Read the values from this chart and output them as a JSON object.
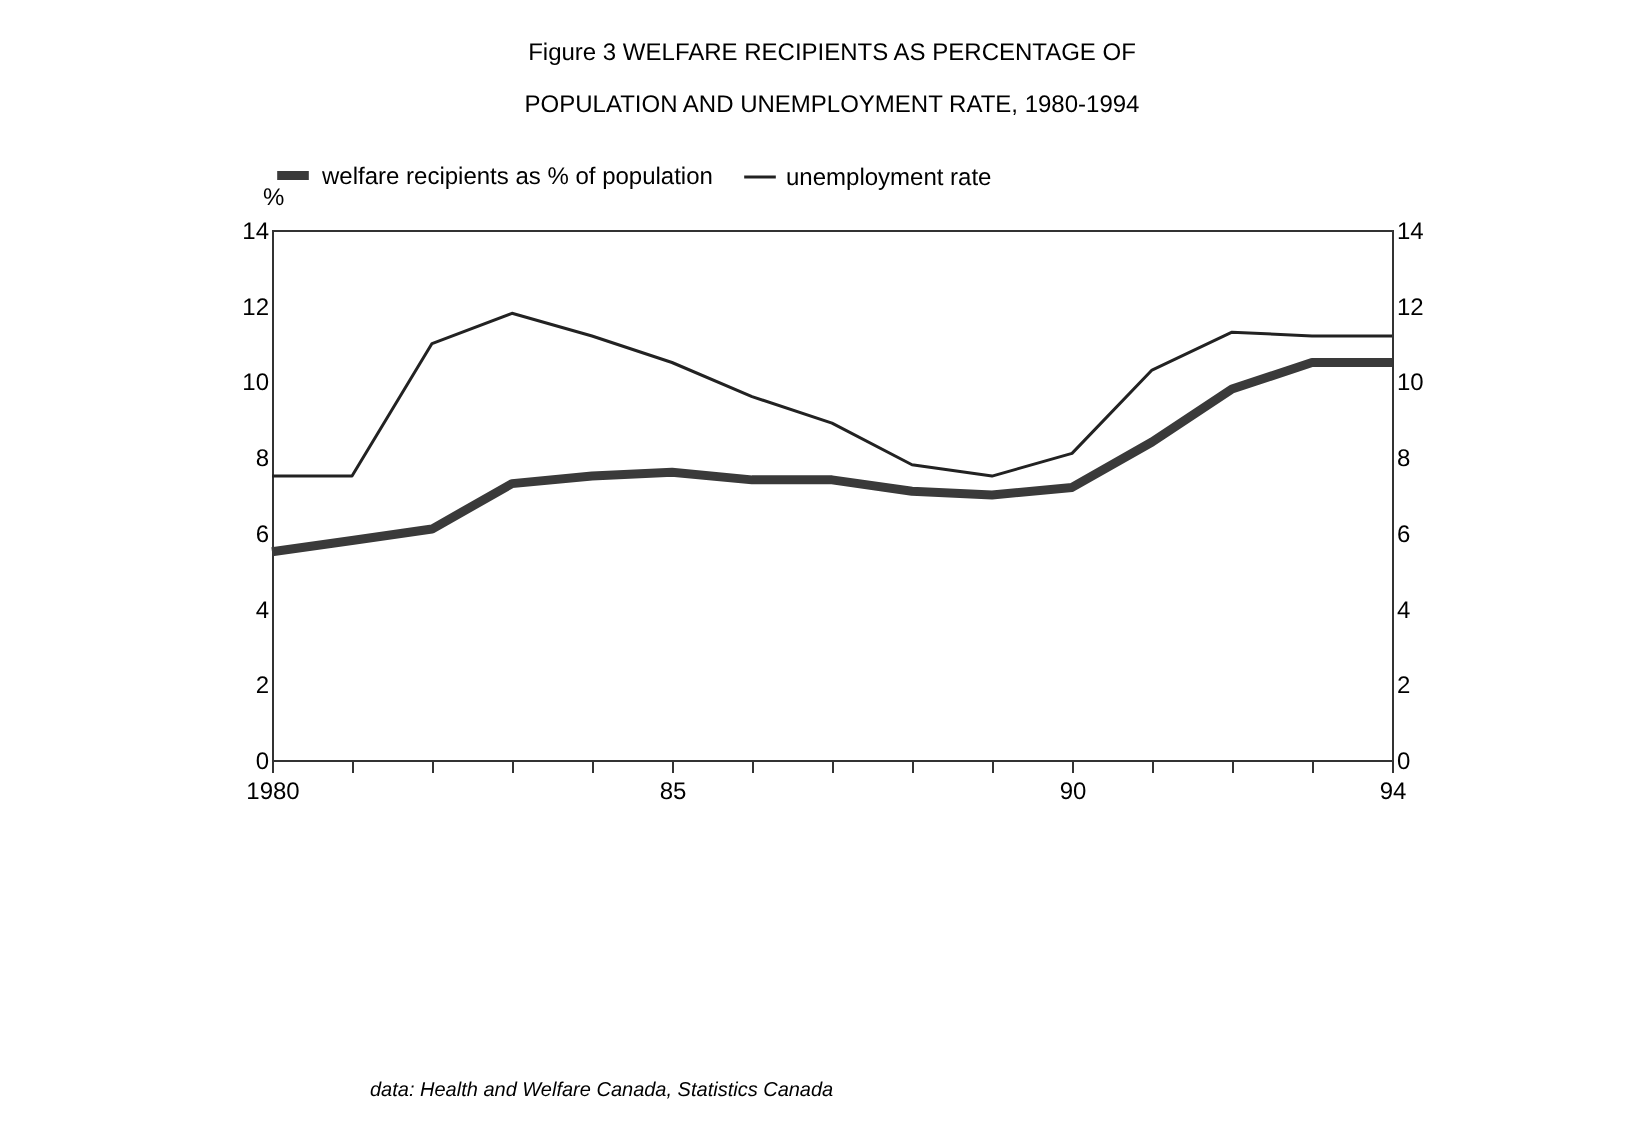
{
  "chart_data": {
    "type": "line",
    "title": "Figure 3   WELFARE RECIPIENTS AS PERCENTAGE OF\nPOPULATION AND UNEMPLOYMENT RATE, 1980-1994",
    "ylabel": "%",
    "x": [
      1980,
      1981,
      1982,
      1983,
      1984,
      1985,
      1986,
      1987,
      1988,
      1989,
      1990,
      1991,
      1992,
      1993,
      1994
    ],
    "series": [
      {
        "name": "welfare recipients as % of population",
        "color": "#3a3a3a",
        "values": [
          5.5,
          5.8,
          6.1,
          7.3,
          7.5,
          7.6,
          7.4,
          7.4,
          7.1,
          7.0,
          7.2,
          8.4,
          9.8,
          10.5,
          10.5
        ]
      },
      {
        "name": "unemployment rate",
        "color": "#222222",
        "values": [
          7.5,
          7.5,
          11.0,
          11.8,
          11.2,
          10.5,
          9.6,
          8.9,
          7.8,
          7.5,
          8.1,
          10.3,
          11.3,
          11.2,
          11.2
        ]
      }
    ],
    "xlim": [
      1980,
      1994
    ],
    "xticks": [
      {
        "value": 1980,
        "label": "1980"
      },
      {
        "value": 1981,
        "label": null
      },
      {
        "value": 1982,
        "label": null
      },
      {
        "value": 1983,
        "label": null
      },
      {
        "value": 1984,
        "label": null
      },
      {
        "value": 1985,
        "label": "85"
      },
      {
        "value": 1986,
        "label": null
      },
      {
        "value": 1987,
        "label": null
      },
      {
        "value": 1988,
        "label": null
      },
      {
        "value": 1989,
        "label": null
      },
      {
        "value": 1990,
        "label": "90"
      },
      {
        "value": 1991,
        "label": null
      },
      {
        "value": 1992,
        "label": null
      },
      {
        "value": 1993,
        "label": null
      },
      {
        "value": 1994,
        "label": "94"
      }
    ],
    "ylim": [
      0,
      14
    ],
    "yticks": [
      0,
      2,
      4,
      6,
      8,
      10,
      12,
      14
    ],
    "y2lim": [
      0,
      14
    ],
    "y2ticks": [
      0,
      2,
      4,
      6,
      8,
      10,
      12,
      14
    ],
    "legend": "top",
    "grid": false,
    "marker": "none",
    "line_style": "solid",
    "annotations": [
      "data: Health and Welfare Canada, Statistics Canada"
    ]
  }
}
